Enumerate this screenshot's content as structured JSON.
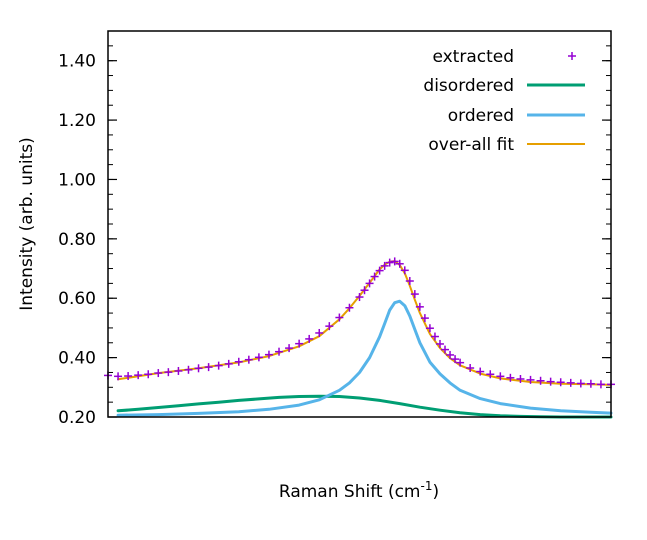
{
  "chart_data": {
    "type": "line",
    "title": "",
    "xlabel": "Raman Shift (cm",
    "xlabel_sup": "-1",
    "xlabel_tail": ")",
    "ylabel": "Intensity (arb. units)",
    "xlim": [
      0,
      100
    ],
    "ylim": [
      0.2,
      1.5
    ],
    "x_tick_labels": "none",
    "y_ticks": [
      0.2,
      0.4,
      0.6,
      0.8,
      1.0,
      1.2,
      1.4
    ],
    "y_tick_labels": [
      "0.20",
      "0.40",
      "0.60",
      "0.80",
      "1.00",
      "1.20",
      "1.40"
    ],
    "grid": false,
    "legend_position": "top-right",
    "series": [
      {
        "name": "extracted",
        "kind": "points",
        "marker": "plus",
        "color": "#9400d3",
        "x": [
          0,
          2,
          4,
          6,
          8,
          10,
          12,
          14,
          16,
          18,
          20,
          22,
          24,
          26,
          28,
          30,
          32,
          34,
          36,
          38,
          40,
          42,
          44,
          46,
          48,
          50,
          51,
          52,
          53,
          54,
          55,
          56,
          57,
          58,
          59,
          60,
          61,
          62,
          63,
          64,
          65,
          66,
          67,
          68,
          69,
          70,
          72,
          74,
          76,
          78,
          80,
          82,
          84,
          86,
          88,
          90,
          92,
          94,
          96,
          98,
          100
        ],
        "y": [
          0.34,
          0.337,
          0.338,
          0.341,
          0.344,
          0.348,
          0.351,
          0.355,
          0.359,
          0.364,
          0.368,
          0.373,
          0.379,
          0.386,
          0.393,
          0.401,
          0.41,
          0.42,
          0.432,
          0.447,
          0.463,
          0.483,
          0.506,
          0.535,
          0.568,
          0.604,
          0.627,
          0.65,
          0.673,
          0.693,
          0.709,
          0.72,
          0.724,
          0.716,
          0.694,
          0.658,
          0.614,
          0.571,
          0.533,
          0.499,
          0.471,
          0.446,
          0.427,
          0.409,
          0.395,
          0.383,
          0.365,
          0.353,
          0.344,
          0.337,
          0.332,
          0.328,
          0.325,
          0.322,
          0.319,
          0.317,
          0.315,
          0.313,
          0.312,
          0.31,
          0.31
        ]
      },
      {
        "name": "disordered",
        "kind": "line",
        "color": "#009e73",
        "x": [
          2,
          6,
          10,
          14,
          18,
          22,
          26,
          30,
          34,
          38,
          42,
          46,
          50,
          54,
          58,
          62,
          66,
          70,
          74,
          78,
          82,
          86,
          90,
          94,
          98,
          100
        ],
        "y": [
          0.221,
          0.226,
          0.232,
          0.238,
          0.244,
          0.25,
          0.256,
          0.261,
          0.266,
          0.269,
          0.27,
          0.269,
          0.264,
          0.256,
          0.245,
          0.233,
          0.223,
          0.214,
          0.208,
          0.204,
          0.202,
          0.201,
          0.2,
          0.2,
          0.2,
          0.2
        ]
      },
      {
        "name": "ordered",
        "kind": "line",
        "color": "#56b4e9",
        "x": [
          2,
          10,
          18,
          26,
          32,
          38,
          42,
          46,
          48,
          50,
          52,
          54,
          55,
          56,
          57,
          58,
          59,
          60,
          61,
          62,
          64,
          66,
          68,
          70,
          74,
          78,
          84,
          90,
          96,
          100
        ],
        "y": [
          0.206,
          0.208,
          0.212,
          0.218,
          0.226,
          0.24,
          0.258,
          0.29,
          0.315,
          0.35,
          0.4,
          0.47,
          0.515,
          0.56,
          0.585,
          0.59,
          0.575,
          0.54,
          0.495,
          0.45,
          0.385,
          0.345,
          0.315,
          0.29,
          0.262,
          0.245,
          0.23,
          0.221,
          0.216,
          0.213
        ]
      },
      {
        "name": "over-all fit",
        "kind": "line",
        "color": "#e69f00",
        "x": [
          2,
          10,
          18,
          26,
          32,
          38,
          42,
          46,
          48,
          50,
          52,
          54,
          55,
          56,
          57,
          58,
          59,
          60,
          61,
          62,
          64,
          66,
          68,
          70,
          74,
          78,
          84,
          90,
          96,
          100
        ],
        "y": [
          0.327,
          0.348,
          0.364,
          0.384,
          0.405,
          0.438,
          0.472,
          0.529,
          0.566,
          0.608,
          0.652,
          0.697,
          0.713,
          0.723,
          0.725,
          0.712,
          0.684,
          0.642,
          0.595,
          0.55,
          0.48,
          0.432,
          0.398,
          0.374,
          0.346,
          0.33,
          0.318,
          0.312,
          0.31,
          0.308
        ]
      }
    ]
  }
}
